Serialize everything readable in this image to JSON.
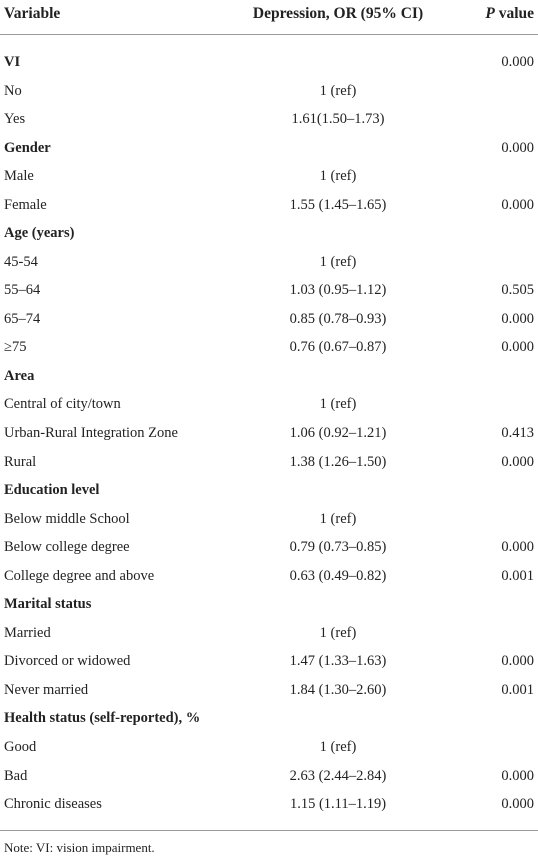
{
  "table": {
    "columns": [
      "Variable",
      "Depression, OR (95% CI)",
      "P value"
    ],
    "sections": [
      {
        "title": "VI",
        "p": "0.000",
        "rows": [
          {
            "variable": "No",
            "or": "1 (ref)"
          },
          {
            "variable": "Yes",
            "or": "1.61(1.50–1.73)"
          }
        ]
      },
      {
        "title": "Gender",
        "p": "0.000",
        "rows": [
          {
            "variable": "Male",
            "or": "1 (ref)"
          },
          {
            "variable": "Female",
            "or": "1.55 (1.45–1.65)",
            "p": "0.000"
          }
        ]
      },
      {
        "title": "Age (years)",
        "rows": [
          {
            "variable": "45-54",
            "or": "1 (ref)"
          },
          {
            "variable": "55–64",
            "or": "1.03 (0.95–1.12)",
            "p": "0.505"
          },
          {
            "variable": "65–74",
            "or": "0.85 (0.78–0.93)",
            "p": "0.000"
          },
          {
            "variable": "≥75",
            "or": "0.76 (0.67–0.87)",
            "p": "0.000"
          }
        ]
      },
      {
        "title": "Area",
        "rows": [
          {
            "variable": "Central of city/town",
            "or": "1 (ref)"
          },
          {
            "variable": "Urban-Rural Integration Zone",
            "or": "1.06 (0.92–1.21)",
            "p": "0.413"
          },
          {
            "variable": "Rural",
            "or": "1.38 (1.26–1.50)",
            "p": "0.000"
          }
        ]
      },
      {
        "title": "Education level",
        "rows": [
          {
            "variable": "Below middle School",
            "or": "1 (ref)"
          },
          {
            "variable": "Below college degree",
            "or": "0.79 (0.73–0.85)",
            "p": "0.000"
          },
          {
            "variable": "College degree and above",
            "or": "0.63 (0.49–0.82)",
            "p": "0.001"
          }
        ]
      },
      {
        "title": "Marital status",
        "rows": [
          {
            "variable": "Married",
            "or": "1 (ref)"
          },
          {
            "variable": "Divorced or widowed",
            "or": "1.47 (1.33–1.63)",
            "p": "0.000"
          },
          {
            "variable": "Never married",
            "or": "1.84 (1.30–2.60)",
            "p": "0.001"
          }
        ]
      },
      {
        "title": "Health status (self-reported), %",
        "rows": [
          {
            "variable": "Good",
            "or": "1 (ref)"
          },
          {
            "variable": "Bad",
            "or": "2.63 (2.44–2.84)",
            "p": "0.000"
          },
          {
            "variable": "Chronic diseases",
            "or": "1.15 (1.11–1.19)",
            "p": "0.000"
          }
        ]
      }
    ],
    "note": "Note: VI: vision impairment."
  }
}
